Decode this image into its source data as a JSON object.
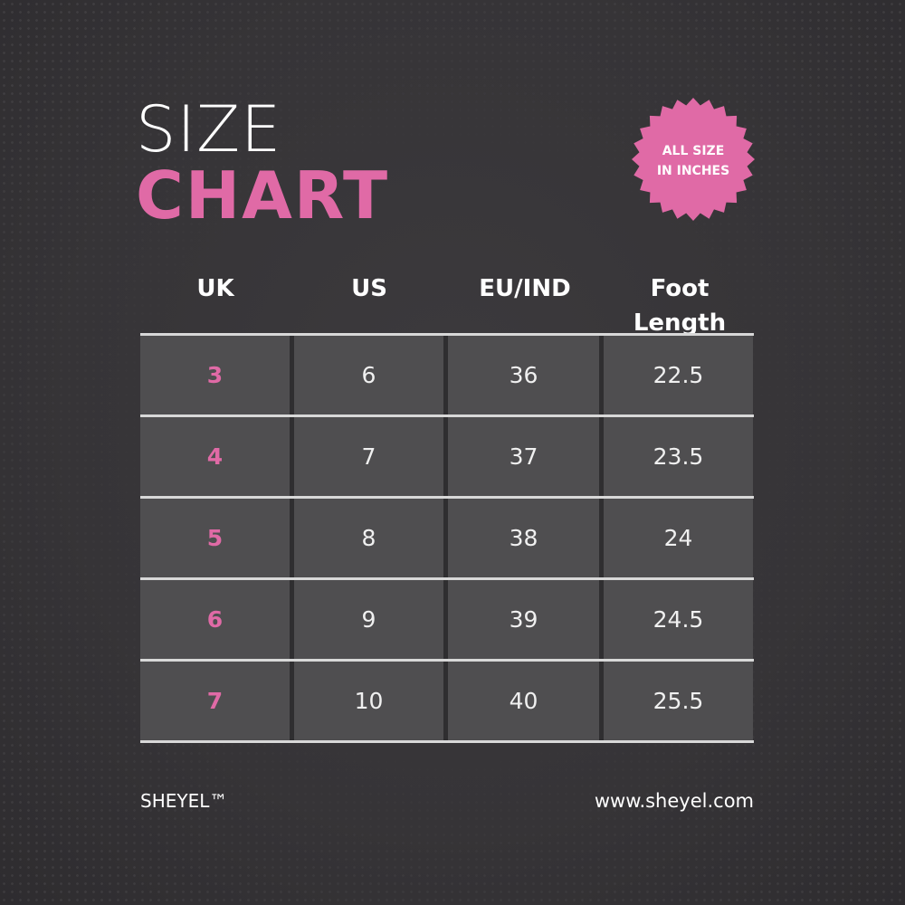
{
  "title": {
    "line1": "SIZE",
    "line2": "CHART"
  },
  "badge": {
    "line1": "ALL SIZE",
    "line2": "IN INCHES",
    "color": "#e06aa6"
  },
  "colors": {
    "accent": "#e06aa6",
    "background": "#363437",
    "cell": "#4f4e50"
  },
  "table": {
    "headers": [
      "UK",
      "US",
      "EU/IND",
      "Foot Length"
    ],
    "rows": [
      [
        "3",
        "6",
        "36",
        "22.5"
      ],
      [
        "4",
        "7",
        "37",
        "23.5"
      ],
      [
        "5",
        "8",
        "38",
        "24"
      ],
      [
        "6",
        "9",
        "39",
        "24.5"
      ],
      [
        "7",
        "10",
        "40",
        "25.5"
      ]
    ]
  },
  "footer": {
    "brand": "SHEYEL™",
    "website": "www.sheyel.com"
  }
}
